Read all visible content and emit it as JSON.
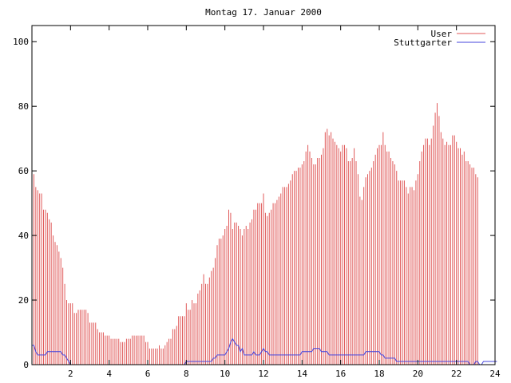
{
  "chart_data": {
    "type": "bar",
    "title": "Montag 17. Januar 2000",
    "xlabel": "",
    "ylabel": "",
    "xlim": [
      0,
      24
    ],
    "ylim": [
      0,
      105
    ],
    "x_ticks": [
      2,
      4,
      6,
      8,
      10,
      12,
      14,
      16,
      18,
      20,
      22,
      24
    ],
    "y_ticks": [
      0,
      20,
      40,
      60,
      80,
      100
    ],
    "grid": false,
    "legend_position": "top-right",
    "series": [
      {
        "name": "User",
        "style": "impulses",
        "color": "#e05a5a",
        "x_start": 0,
        "x_step": 0.1,
        "values": [
          60,
          59,
          55,
          54,
          53,
          53,
          48,
          48,
          47,
          45,
          44,
          40,
          38,
          37,
          35,
          33,
          30,
          25,
          20,
          19,
          19,
          19,
          16,
          16,
          17,
          17,
          17,
          17,
          17,
          16,
          13,
          13,
          13,
          13,
          11,
          10,
          10,
          10,
          9,
          9,
          9,
          8,
          8,
          8,
          8,
          8,
          7,
          7,
          7,
          8,
          8,
          8,
          9,
          9,
          9,
          9,
          9,
          9,
          9,
          7,
          7,
          5,
          5,
          5,
          5,
          5,
          6,
          5,
          5,
          6,
          7,
          8,
          8,
          11,
          11,
          12,
          15,
          15,
          15,
          15,
          19,
          17,
          17,
          20,
          19,
          19,
          22,
          23,
          25,
          28,
          25,
          25,
          27,
          29,
          30,
          33,
          37,
          39,
          39,
          40,
          42,
          43,
          48,
          47,
          42,
          44,
          44,
          43,
          42,
          40,
          42,
          43,
          42,
          44,
          45,
          48,
          48,
          50,
          50,
          50,
          53,
          47,
          46,
          47,
          48,
          50,
          50,
          51,
          52,
          53,
          55,
          55,
          55,
          56,
          57,
          59,
          60,
          60,
          61,
          61,
          62,
          63,
          66,
          68,
          66,
          64,
          62,
          62,
          64,
          64,
          65,
          67,
          72,
          73,
          71,
          72,
          70,
          69,
          68,
          67,
          66,
          68,
          68,
          67,
          63,
          63,
          64,
          67,
          63,
          59,
          52,
          51,
          55,
          58,
          59,
          60,
          61,
          63,
          65,
          67,
          68,
          68,
          72,
          68,
          66,
          66,
          64,
          63,
          62,
          60,
          57,
          57,
          57,
          57,
          55,
          53,
          55,
          55,
          54,
          57,
          59,
          63,
          66,
          68,
          70,
          70,
          68,
          70,
          74,
          78,
          81,
          77,
          72,
          70,
          68,
          69,
          68,
          68,
          71,
          71,
          69,
          67,
          67,
          65,
          66,
          63,
          63,
          62,
          61,
          61,
          59,
          58
        ]
      },
      {
        "name": "Stuttgarter",
        "style": "line",
        "color": "#4444dd",
        "x_start": 0,
        "x_step": 0.1,
        "values": [
          6,
          6,
          4,
          3,
          3,
          3,
          3,
          3,
          4,
          4,
          4,
          4,
          4,
          4,
          4,
          4,
          3,
          3,
          2,
          1,
          0,
          0,
          0,
          0,
          0,
          0,
          0,
          0,
          0,
          0,
          0,
          0,
          0,
          0,
          0,
          0,
          0,
          0,
          0,
          0,
          0,
          0,
          0,
          0,
          0,
          0,
          0,
          0,
          0,
          0,
          0,
          0,
          0,
          0,
          0,
          0,
          0,
          0,
          0,
          0,
          0,
          0,
          0,
          0,
          0,
          0,
          0,
          0,
          0,
          0,
          0,
          0,
          0,
          0,
          0,
          0,
          0,
          0,
          0,
          0,
          1,
          1,
          1,
          1,
          1,
          1,
          1,
          1,
          1,
          1,
          1,
          1,
          1,
          1,
          2,
          2,
          3,
          3,
          3,
          3,
          3,
          4,
          5,
          7,
          8,
          7,
          6,
          6,
          4,
          5,
          3,
          3,
          3,
          3,
          3,
          4,
          3,
          3,
          3,
          4,
          5,
          4,
          4,
          3,
          3,
          3,
          3,
          3,
          3,
          3,
          3,
          3,
          3,
          3,
          3,
          3,
          3,
          3,
          3,
          3,
          4,
          4,
          4,
          4,
          4,
          4,
          5,
          5,
          5,
          5,
          4,
          4,
          4,
          4,
          3,
          3,
          3,
          3,
          3,
          3,
          3,
          3,
          3,
          3,
          3,
          3,
          3,
          3,
          3,
          3,
          3,
          3,
          3,
          4,
          4,
          4,
          4,
          4,
          4,
          4,
          4,
          3,
          3,
          2,
          2,
          2,
          2,
          2,
          2,
          1,
          1,
          1,
          1,
          1,
          1,
          1,
          1,
          1,
          1,
          1,
          1,
          1,
          1,
          1,
          1,
          1,
          1,
          1,
          1,
          1,
          1,
          1,
          1,
          1,
          1,
          1,
          1,
          1,
          1,
          1,
          1,
          1,
          1,
          1,
          1,
          1,
          1,
          0,
          0,
          0,
          1,
          1,
          0,
          0,
          1,
          1,
          1,
          1,
          1,
          1,
          1,
          1
        ]
      }
    ]
  }
}
